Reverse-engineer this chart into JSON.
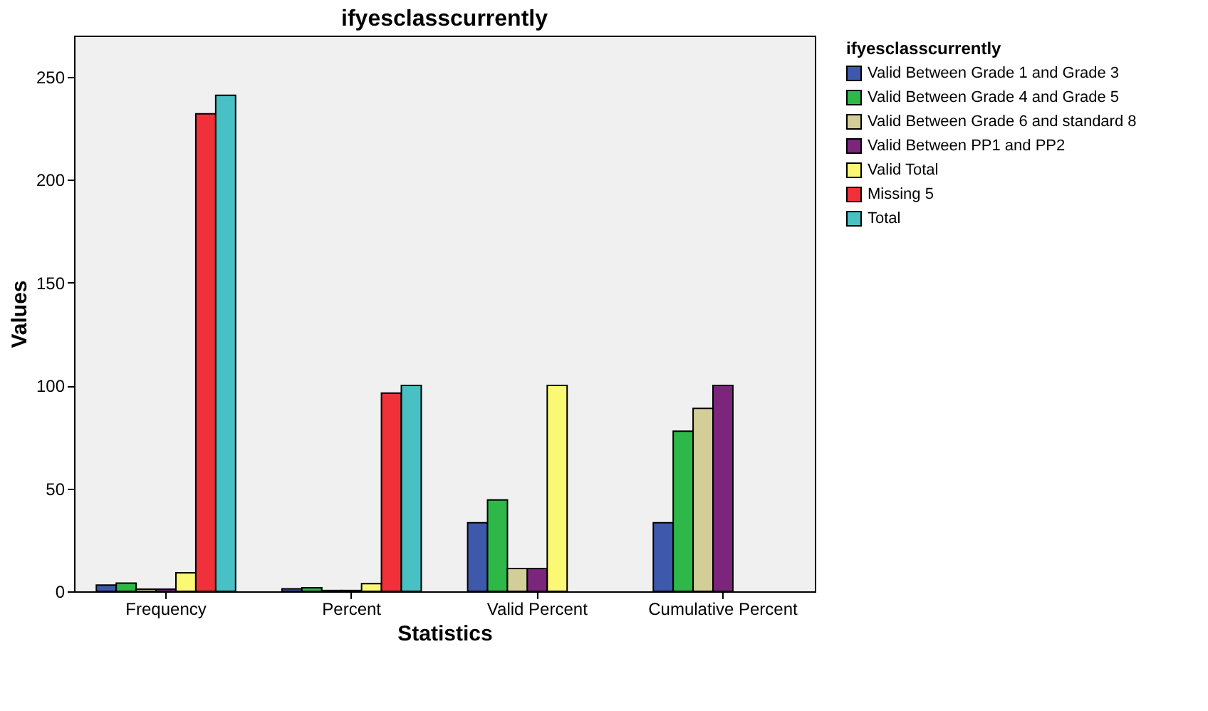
{
  "chart_data": {
    "type": "bar",
    "title": "ifyesclasscurrently",
    "xlabel": "Statistics",
    "ylabel": "Values",
    "legend_title": "ifyesclasscurrently",
    "legend": "right",
    "grid": false,
    "categories": [
      "Frequency",
      "Percent",
      "Valid Percent",
      "Cumulative Percent"
    ],
    "ylim": [
      0,
      270
    ],
    "yticks": [
      0,
      50,
      100,
      150,
      200,
      250
    ],
    "series": [
      {
        "name": "Valid Between Grade 1 and Grade 3",
        "color": "#3e58ac",
        "values": [
          3,
          1.2,
          33.3,
          33.3
        ]
      },
      {
        "name": "Valid Between Grade 4 and Grade 5",
        "color": "#2eb848",
        "values": [
          4,
          1.7,
          44.4,
          77.8
        ]
      },
      {
        "name": "Valid Between Grade 6 and standard 8",
        "color": "#d3ce97",
        "values": [
          1,
          0.4,
          11.1,
          88.9
        ]
      },
      {
        "name": "Valid Between PP1 and PP2",
        "color": "#7b267c",
        "values": [
          1,
          0.4,
          11.1,
          100
        ]
      },
      {
        "name": "Valid Total",
        "color": "#fbf873",
        "values": [
          9,
          3.7,
          100,
          null
        ]
      },
      {
        "name": "Missing 5",
        "color": "#f0313a",
        "values": [
          232,
          96.3,
          null,
          null
        ]
      },
      {
        "name": "Total",
        "color": "#48c0c4",
        "values": [
          241,
          100,
          null,
          null
        ]
      }
    ]
  }
}
